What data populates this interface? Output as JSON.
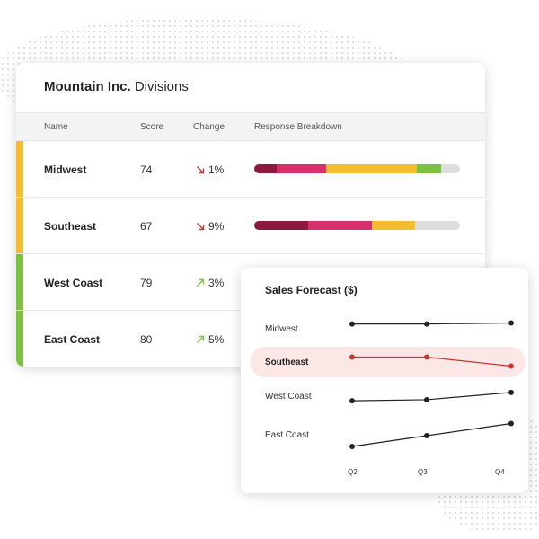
{
  "card": {
    "brand": "Mountain Inc.",
    "title_rest": "Divisions"
  },
  "table": {
    "columns": [
      "Name",
      "Score",
      "Change",
      "Response Breakdown"
    ],
    "rows": [
      {
        "name": "Midwest",
        "score": "74",
        "change": "1%",
        "direction": "down",
        "accent": "#f2be30",
        "breakdown": [
          {
            "value": 11,
            "color": "#8b1a3c"
          },
          {
            "value": 24,
            "color": "#d8306c"
          },
          {
            "value": 44,
            "color": "#f2be30"
          },
          {
            "value": 12,
            "color": "#7cc142"
          },
          {
            "value": 9,
            "color": "#dddddd"
          }
        ]
      },
      {
        "name": "Southeast",
        "score": "67",
        "change": "9%",
        "direction": "down",
        "accent": "#f2be30",
        "breakdown": [
          {
            "value": 26,
            "color": "#8b1a3c"
          },
          {
            "value": 31,
            "color": "#d8306c"
          },
          {
            "value": 21,
            "color": "#f2be30"
          },
          {
            "value": 22,
            "color": "#dddddd"
          }
        ]
      },
      {
        "name": "West Coast",
        "score": "79",
        "change": "3%",
        "direction": "up",
        "accent": "#7cc142",
        "breakdown": []
      },
      {
        "name": "East Coast",
        "score": "80",
        "change": "5%",
        "direction": "up",
        "accent": "#7cc142",
        "breakdown": []
      }
    ]
  },
  "colors": {
    "down_arrow": "#c0392b",
    "up_arrow": "#7cc142",
    "line": "#222222",
    "highlight_line": "#c9362f"
  },
  "chart_data": {
    "type": "line",
    "title": "Sales Forecast ($)",
    "categories": [
      "Q2",
      "Q3",
      "Q4"
    ],
    "highlighted": "Southeast",
    "series": [
      {
        "name": "Midwest",
        "values": [
          50,
          50,
          51
        ]
      },
      {
        "name": "Southeast",
        "values": [
          50,
          50,
          42
        ]
      },
      {
        "name": "West Coast",
        "values": [
          42,
          43,
          50
        ]
      },
      {
        "name": "East Coast",
        "values": [
          38,
          46,
          55
        ]
      }
    ]
  }
}
